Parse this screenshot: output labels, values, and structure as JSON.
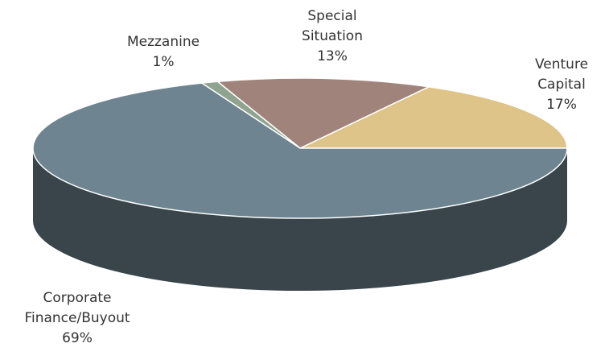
{
  "chart_data": {
    "type": "pie",
    "categories": [
      "Venture Capital",
      "Special Situation",
      "Mezzanine",
      "Corporate Finance/Buyout"
    ],
    "values": [
      17,
      13,
      1,
      69
    ],
    "value_labels": [
      "17%",
      "13%",
      "1%",
      "69%"
    ],
    "colors": [
      "#dfc48a",
      "#a0847c",
      "#8fa38f",
      "#6e8490"
    ]
  }
}
